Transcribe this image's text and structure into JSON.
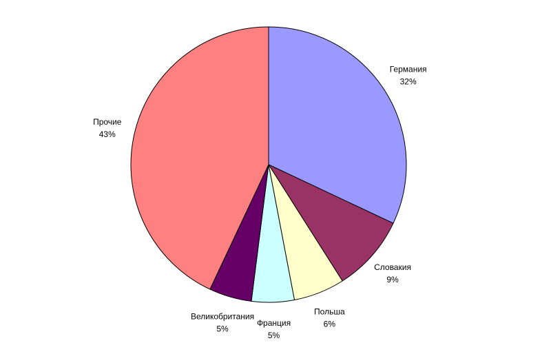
{
  "chart_data": {
    "type": "pie",
    "categories": [
      "Германия",
      "Словакия",
      "Польша",
      "Франция",
      "Великобритания",
      "Прочие"
    ],
    "values": [
      32,
      9,
      6,
      5,
      5,
      43
    ],
    "value_labels": [
      "32%",
      "9%",
      "6%",
      "5%",
      "5%",
      "43%"
    ],
    "colors": [
      "#9999ff",
      "#993366",
      "#ffffcc",
      "#ccffff",
      "#660066",
      "#ff8080"
    ]
  }
}
